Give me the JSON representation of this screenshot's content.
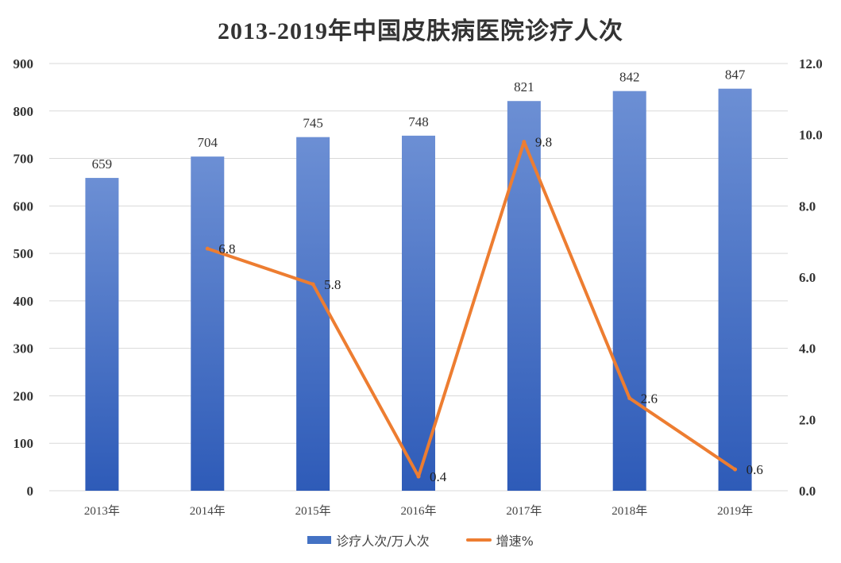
{
  "chart_data": {
    "type": "bar",
    "title": "2013-2019年中国皮肤病医院诊疗人次",
    "categories": [
      "2013年",
      "2014年",
      "2015年",
      "2016年",
      "2017年",
      "2018年",
      "2019年"
    ],
    "series": [
      {
        "name": "诊疗人次/万人次",
        "type": "bar",
        "axis": "left",
        "values": [
          659,
          704,
          745,
          748,
          821,
          842,
          847
        ],
        "color": "#4472c4"
      },
      {
        "name": "增速%",
        "type": "line",
        "axis": "right",
        "x": [
          "2014年",
          "2015年",
          "2016年",
          "2017年",
          "2018年",
          "2019年"
        ],
        "values": [
          6.8,
          5.8,
          0.4,
          9.8,
          2.6,
          0.6
        ],
        "labels": [
          "6.8",
          "5.8",
          "0.4",
          "9.8",
          "2.6",
          "0.6"
        ],
        "color": "#ed7d31"
      }
    ],
    "y_left": {
      "range": [
        0,
        900
      ],
      "ticks": [
        "0",
        "100",
        "200",
        "300",
        "400",
        "500",
        "600",
        "700",
        "800",
        "900"
      ]
    },
    "y_right": {
      "range": [
        0,
        12
      ],
      "ticks": [
        "0.0",
        "2.0",
        "4.0",
        "6.0",
        "8.0",
        "10.0",
        "12.0"
      ]
    },
    "grid": true,
    "legend_position": "bottom"
  }
}
